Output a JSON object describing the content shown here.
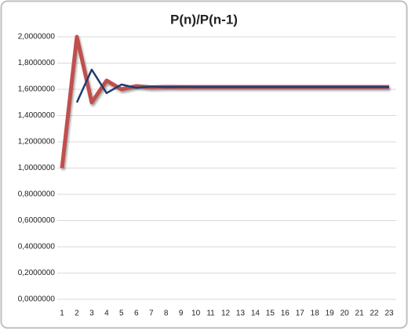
{
  "chart_data": {
    "type": "line",
    "title": "P(n)/P(n-1)",
    "categories": [
      "1",
      "2",
      "3",
      "4",
      "5",
      "6",
      "7",
      "8",
      "9",
      "10",
      "11",
      "12",
      "13",
      "14",
      "15",
      "16",
      "17",
      "18",
      "19",
      "20",
      "21",
      "22",
      "23"
    ],
    "series": [
      {
        "color": "#c0504d",
        "values": [
          1,
          2,
          1.5,
          1.6667,
          1.6,
          1.625,
          1.6154,
          1.619,
          1.6176,
          1.6182,
          1.618,
          1.618,
          1.618,
          1.618,
          1.618,
          1.618,
          1.618,
          1.618,
          1.618,
          1.618,
          1.618,
          1.618,
          1.618
        ]
      },
      {
        "color": "#1f3c70",
        "values": [
          null,
          1.5,
          1.75,
          1.5714,
          1.6364,
          1.6111,
          1.6207,
          1.617,
          1.6184,
          1.618,
          1.618,
          1.618,
          1.618,
          1.618,
          1.618,
          1.618,
          1.618,
          1.618,
          1.618,
          1.618,
          1.618,
          1.618,
          1.618
        ]
      }
    ],
    "ylim": [
      0,
      2
    ],
    "yticks": [
      {
        "value": 0,
        "label": "0,0000000"
      },
      {
        "value": 0.2,
        "label": "0,2000000"
      },
      {
        "value": 0.4,
        "label": "0,4000000"
      },
      {
        "value": 0.6,
        "label": "0,6000000"
      },
      {
        "value": 0.8,
        "label": "0,8000000"
      },
      {
        "value": 1,
        "label": "1,0000000"
      },
      {
        "value": 1.2,
        "label": "1,2000000"
      },
      {
        "value": 1.4,
        "label": "1,4000000"
      },
      {
        "value": 1.6,
        "label": "1,6000000"
      },
      {
        "value": 1.8,
        "label": "1,8000000"
      },
      {
        "value": 2,
        "label": "2,0000000"
      }
    ],
    "grid": true
  }
}
